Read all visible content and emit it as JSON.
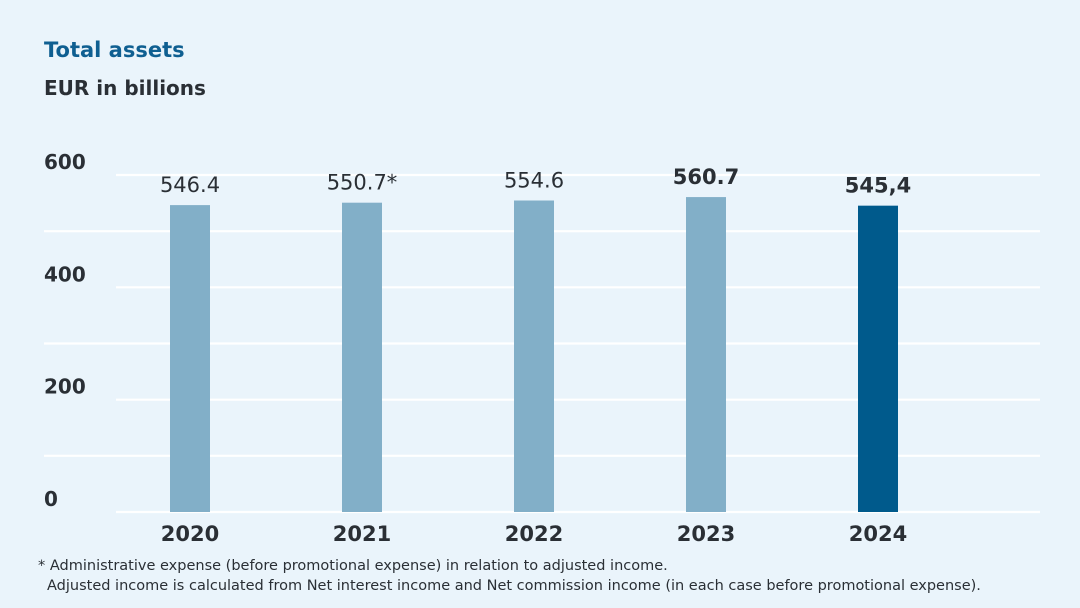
{
  "title": "Total assets",
  "subtitle": "EUR in billions",
  "colors": {
    "bar": "#82afc8",
    "highlight": "#005a8c",
    "grid": "#ffffff"
  },
  "chart_data": {
    "type": "bar",
    "categories": [
      "2020",
      "2021",
      "2022",
      "2023",
      "2024"
    ],
    "values": [
      546.4,
      550.7,
      554.6,
      560.7,
      545.4
    ],
    "data_labels": [
      "546.4",
      "550.7*",
      "554.6",
      "560.7",
      "545,4"
    ],
    "label_bold": [
      false,
      false,
      false,
      true,
      true
    ],
    "highlight_index": 4,
    "ylim": [
      0,
      600
    ],
    "yticks": [
      0,
      200,
      400,
      600
    ],
    "ytick_labels": [
      "0",
      "200",
      "400",
      "600"
    ],
    "minor_gridlines": [
      100,
      300,
      500
    ],
    "grid": true
  },
  "footnote": {
    "line1": "* Administrative expense (before promotional expense) in relation to adjusted income.",
    "line2": "Adjusted income is calculated from Net interest income and Net commission income (in each case before promotional expense)."
  }
}
